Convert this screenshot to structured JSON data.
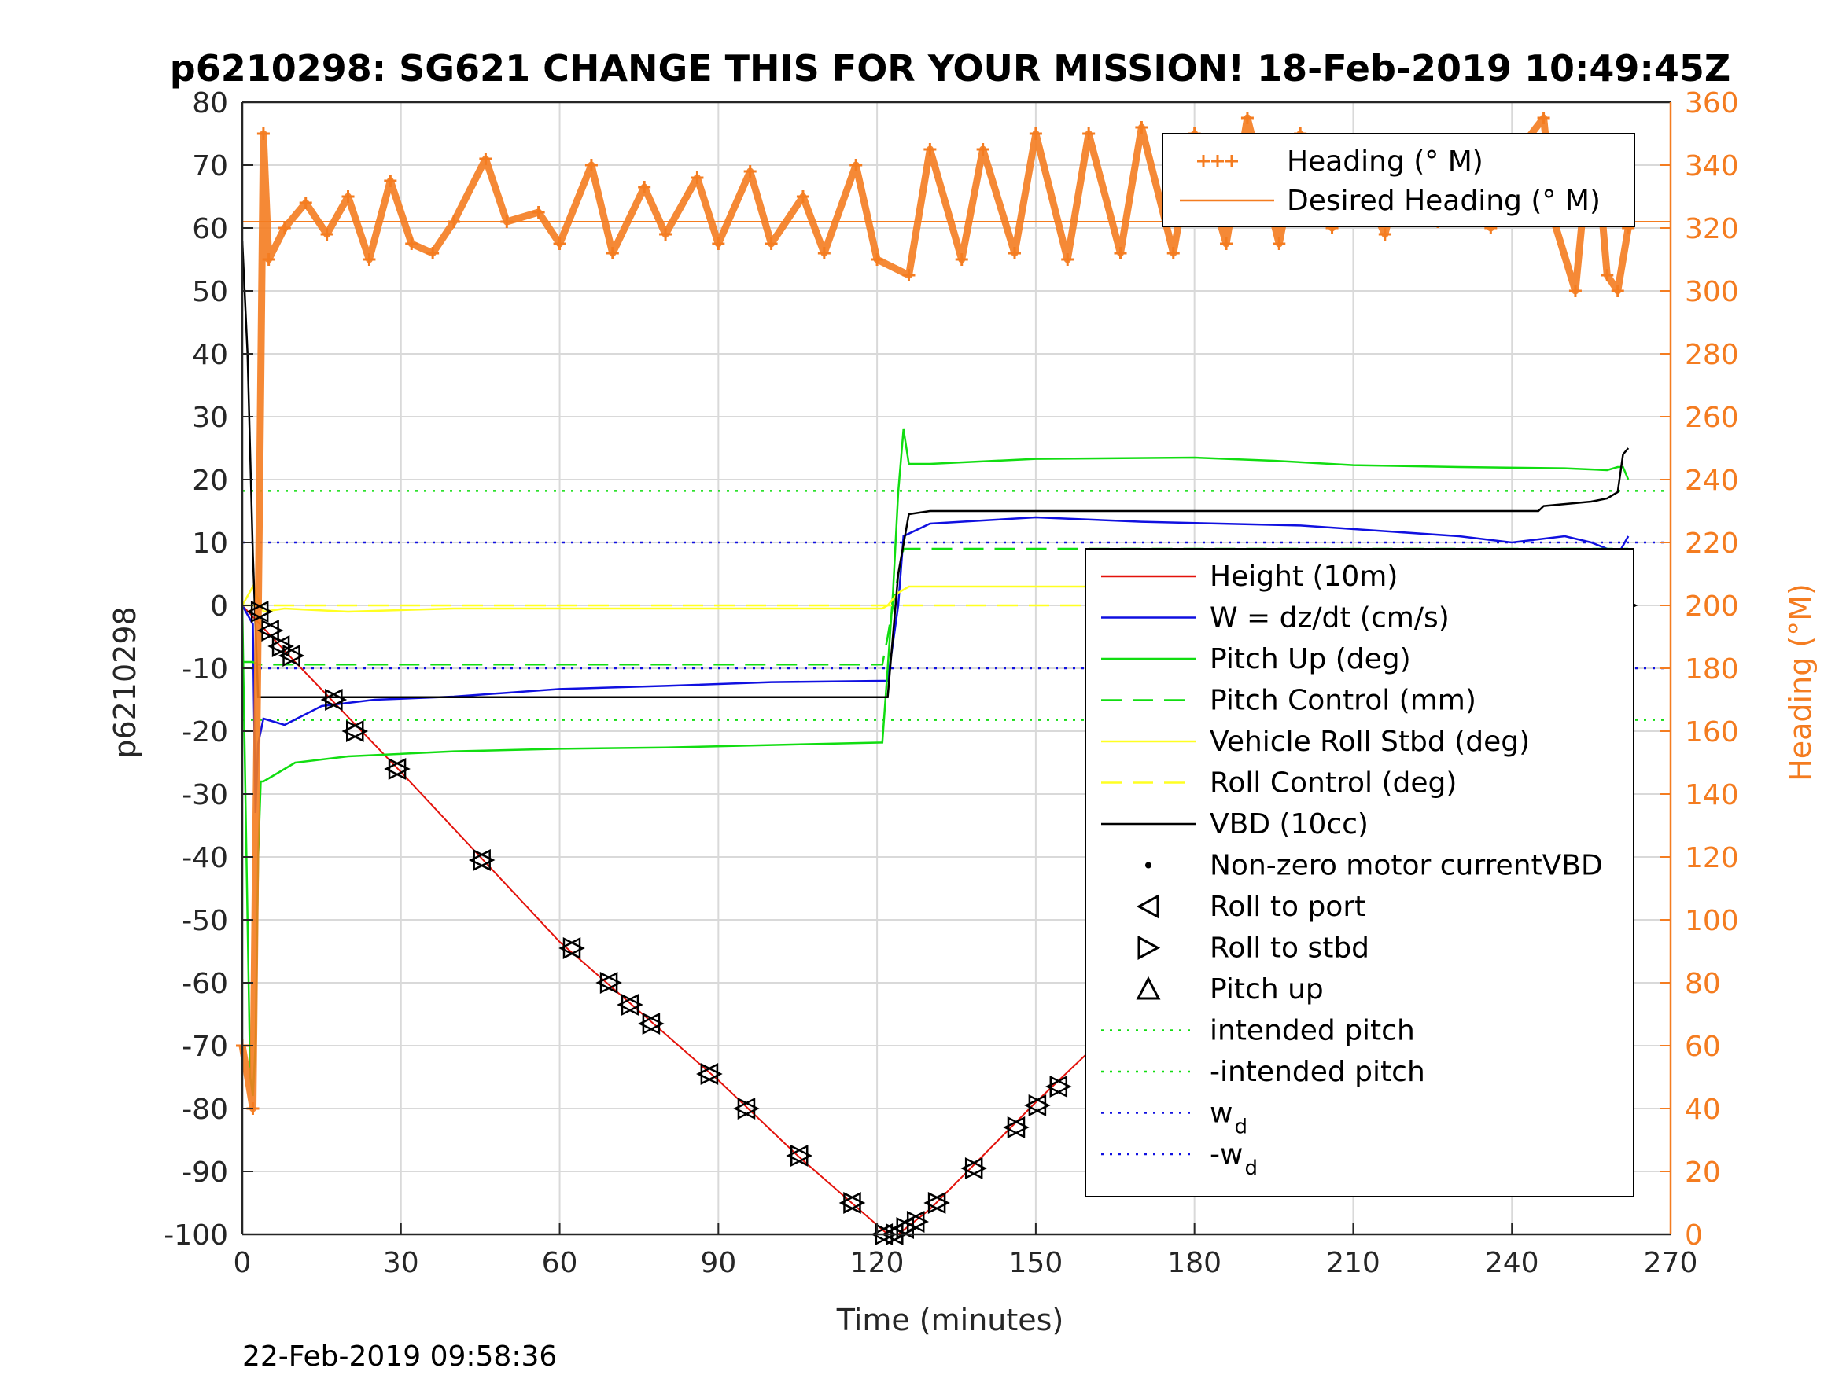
{
  "chart_data": {
    "type": "line",
    "title": "p6210298: SG621 CHANGE THIS FOR YOUR MISSION! 18-Feb-2019 10:49:45Z",
    "xlabel": "Time (minutes)",
    "ylabel_left": "p6210298",
    "ylabel_right": "Heading (°M)",
    "footer": "22-Feb-2019 09:58:36",
    "xlim": [
      0,
      270
    ],
    "ylim_left": [
      -100,
      80
    ],
    "ylim_right": [
      0,
      360
    ],
    "xticks": [
      "0",
      "30",
      "60",
      "90",
      "120",
      "150",
      "180",
      "210",
      "240",
      "270"
    ],
    "yticks_left": [
      "80",
      "70",
      "60",
      "50",
      "40",
      "30",
      "20",
      "10",
      "0",
      "-10",
      "-20",
      "-30",
      "-40",
      "-50",
      "-60",
      "-70",
      "-80",
      "-90",
      "-100"
    ],
    "yticks_right": [
      "360",
      "340",
      "320",
      "300",
      "280",
      "260",
      "240",
      "220",
      "200",
      "180",
      "160",
      "140",
      "120",
      "100",
      "80",
      "60",
      "40",
      "20",
      "0"
    ],
    "grid": true,
    "colors": {
      "heading": "#f47c20",
      "height": "#e3120b",
      "w": "#1010e0",
      "pitch": "#11dd11",
      "roll": "#ffff22",
      "vbd": "#000000",
      "axis": "#262626",
      "grid": "#d9d9d9"
    },
    "legend_top": {
      "placement": "top-right",
      "entries": [
        "Heading (° M)",
        "Desired Heading (° M)"
      ]
    },
    "legend_main": {
      "placement": "right",
      "entries": [
        {
          "label": "Height (10m)",
          "style": "red-line"
        },
        {
          "label": "W = dz/dt (cm/s)",
          "style": "blue-line"
        },
        {
          "label": "Pitch Up (deg)",
          "style": "green-line"
        },
        {
          "label": "Pitch Control (mm)",
          "style": "green-dash"
        },
        {
          "label": "Vehicle Roll Stbd (deg)",
          "style": "yellow-line"
        },
        {
          "label": "Roll Control (deg)",
          "style": "yellow-dash"
        },
        {
          "label": "VBD (10cc)",
          "style": "black-line"
        },
        {
          "label": "Non-zero motor currentVBD",
          "style": "dot"
        },
        {
          "label": "Roll to port",
          "style": "tri-left"
        },
        {
          "label": "Roll to stbd",
          "style": "tri-right"
        },
        {
          "label": "Pitch up",
          "style": "tri-up"
        },
        {
          "label": "intended pitch",
          "style": "green-dot"
        },
        {
          "label": "-intended pitch",
          "style": "green-dot"
        },
        {
          "label": "w",
          "sub": "d",
          "style": "blue-dot"
        },
        {
          "label": "-w",
          "sub": "d",
          "style": "blue-dot"
        }
      ]
    },
    "reference_lines": {
      "intended_pitch": 18.2,
      "neg_intended_pitch": -18.2,
      "w_d": 10,
      "neg_w_d": -10,
      "desired_heading": 322
    },
    "series": [
      {
        "name": "Height (10m)",
        "axis": "left",
        "x": [
          0,
          10,
          30,
          60,
          90,
          105,
          122,
          124,
          130,
          150,
          180,
          210,
          240,
          262
        ],
        "y": [
          0,
          -9,
          -26.5,
          -53.5,
          -75.5,
          -87.5,
          -100,
          -100,
          -96,
          -79,
          -55,
          -33,
          -11,
          0
        ]
      },
      {
        "name": "W = dz/dt (cm/s)",
        "axis": "left",
        "x": [
          0,
          2,
          2.5,
          3,
          4,
          8,
          15,
          25,
          40,
          60,
          80,
          100,
          121,
          122,
          124,
          125,
          130,
          150,
          170,
          200,
          230,
          240,
          250,
          255,
          258,
          260,
          262
        ],
        "y": [
          0,
          -3,
          -33,
          -22,
          -18,
          -19,
          -16,
          -15,
          -14.5,
          -13.3,
          -12.8,
          -12.2,
          -12,
          -12,
          0,
          11,
          13,
          14,
          13.3,
          12.7,
          11,
          10,
          11,
          10,
          9,
          8,
          11
        ]
      },
      {
        "name": "Pitch Up (deg)",
        "axis": "left",
        "x": [
          0,
          1,
          1.5,
          2,
          2.5,
          3,
          3.5,
          4,
          6,
          10,
          20,
          40,
          60,
          80,
          100,
          121,
          122,
          123,
          124,
          125,
          126,
          130,
          150,
          180,
          195,
          210,
          230,
          250,
          258,
          260,
          261,
          262
        ],
        "y": [
          0,
          -50,
          -75,
          -78,
          -70,
          -40,
          -28,
          -28,
          -27,
          -25,
          -24,
          -23.2,
          -22.8,
          -22.6,
          -22.2,
          -21.8,
          -10,
          2,
          18,
          28,
          22.5,
          22.5,
          23.3,
          23.5,
          23,
          22.3,
          22,
          21.8,
          21.5,
          22,
          22,
          20
        ]
      },
      {
        "name": "Pitch Control (mm)",
        "axis": "left",
        "dashed": true,
        "x": [
          0,
          2,
          3,
          6,
          121,
          122,
          124,
          125,
          262
        ],
        "y": [
          -9,
          -9,
          -9.4,
          -9.4,
          -9.4,
          -5,
          5,
          9,
          9
        ]
      },
      {
        "name": "Vehicle Roll Stbd (deg)",
        "axis": "left",
        "x": [
          0,
          2,
          4,
          8,
          20,
          40,
          60,
          80,
          100,
          121,
          122,
          124,
          126,
          140,
          160,
          180,
          200,
          220,
          240,
          255,
          258,
          262
        ],
        "y": [
          0,
          3,
          -1,
          -0.5,
          -1,
          -0.5,
          -0.5,
          -0.5,
          -0.5,
          -0.5,
          0,
          2,
          3,
          3,
          3,
          3,
          3,
          3,
          3,
          3,
          2,
          3
        ]
      },
      {
        "name": "Roll Control (deg)",
        "axis": "left",
        "dashed": true,
        "x": [
          0,
          262
        ],
        "y": [
          0,
          0
        ]
      },
      {
        "name": "VBD (10cc)",
        "axis": "left",
        "x": [
          0,
          1,
          2,
          3,
          121,
          122,
          124,
          126,
          130,
          180,
          220,
          245,
          246,
          255,
          258,
          260,
          261,
          262
        ],
        "y": [
          58,
          40,
          8,
          -14.6,
          -14.6,
          -14.6,
          5,
          14.5,
          15,
          15,
          15,
          15,
          15.8,
          16.5,
          17,
          18,
          24,
          25
        ]
      },
      {
        "name": "Heading (° M)",
        "axis": "right",
        "marker": "plus",
        "x": [
          0,
          2,
          4,
          5,
          8,
          12,
          16,
          20,
          24,
          28,
          32,
          36,
          40,
          46,
          50,
          56,
          60,
          66,
          70,
          76,
          80,
          86,
          90,
          96,
          100,
          106,
          110,
          116,
          120,
          126,
          130,
          136,
          140,
          146,
          150,
          156,
          160,
          166,
          170,
          176,
          180,
          186,
          190,
          196,
          200,
          206,
          210,
          216,
          220,
          226,
          230,
          236,
          240,
          246,
          248,
          252,
          254,
          256,
          258,
          260,
          262
        ],
        "y": [
          60,
          40,
          350,
          310,
          320,
          328,
          318,
          330,
          310,
          335,
          315,
          312,
          322,
          342,
          322,
          325,
          315,
          340,
          312,
          333,
          318,
          336,
          315,
          338,
          315,
          330,
          312,
          340,
          310,
          305,
          345,
          310,
          345,
          312,
          350,
          310,
          350,
          312,
          352,
          312,
          350,
          315,
          355,
          315,
          350,
          320,
          340,
          318,
          345,
          322,
          340,
          320,
          342,
          355,
          322,
          300,
          335,
          345,
          305,
          300,
          320
        ]
      }
    ],
    "markers": {
      "roll_to_port": {
        "x": [
          3,
          5,
          7,
          9,
          17,
          21,
          29,
          45,
          62,
          69,
          73,
          77,
          88,
          95,
          105,
          115,
          121,
          123,
          125,
          127,
          131,
          138,
          146,
          150,
          154,
          162,
          169,
          176,
          181,
          187,
          193,
          200,
          208,
          216,
          223,
          229,
          234,
          240,
          244,
          248,
          252,
          256,
          259,
          261
        ],
        "y": [
          -1,
          -4,
          -6.5,
          -8,
          -15,
          -20,
          -26,
          -40.5,
          -54.5,
          -60,
          -63.5,
          -66.5,
          -74.5,
          -80,
          -87.5,
          -95,
          -100,
          -100,
          -99,
          -98,
          -95,
          -89.5,
          -83,
          -79.5,
          -76.5,
          -70.5,
          -64.5,
          -58.5,
          -54,
          -48,
          -42,
          -36.5,
          -30,
          -24,
          -18,
          -14,
          -10,
          -5.5,
          -3.5,
          -2,
          -1.5,
          -1,
          -0.5,
          0
        ]
      }
    }
  }
}
